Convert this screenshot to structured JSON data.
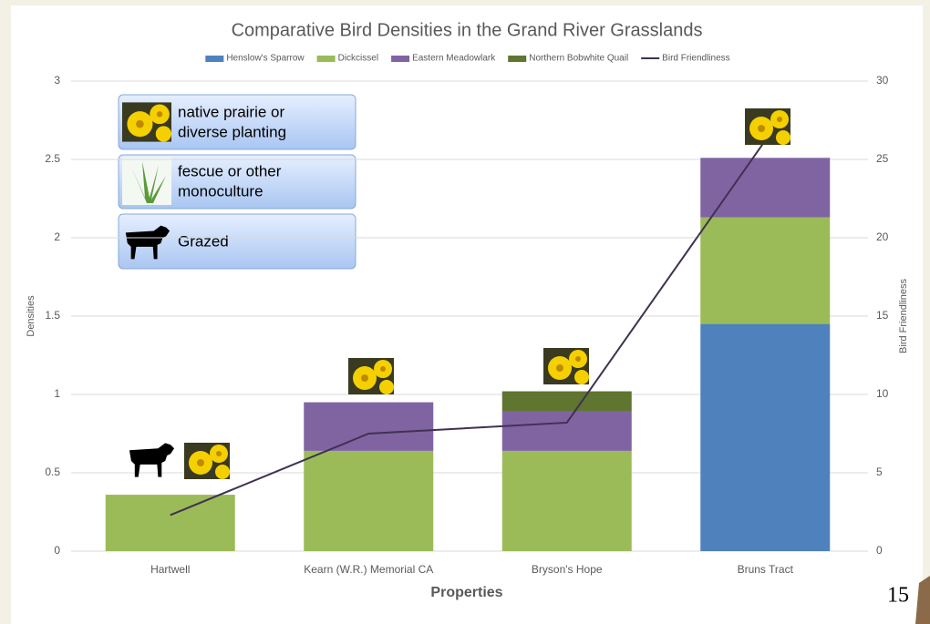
{
  "chart_data": {
    "type": "bar",
    "stacked": true,
    "title": "Comparative Bird Densities in the Grand River Grasslands",
    "categories": [
      "Hartwell",
      "Kearn (W.R.) Memorial CA",
      "Bryson's Hope",
      "Bruns Tract"
    ],
    "series": [
      {
        "name": "Henslow's Sparrow",
        "color": "#4f81bd",
        "values": [
          0,
          0,
          0,
          1.45
        ]
      },
      {
        "name": "Dickcissel",
        "color": "#9bbb59",
        "values": [
          0.36,
          0.64,
          0.64,
          0.68
        ]
      },
      {
        "name": "Eastern Meadowlark",
        "color": "#8064a2",
        "values": [
          0,
          0.31,
          0.25,
          0.38
        ]
      },
      {
        "name": "Northern Bobwhite Quail",
        "color": "#5f7530",
        "values": [
          0,
          0,
          0.13,
          0
        ]
      },
      {
        "name": "Bird Friendliness",
        "type": "line",
        "axis": "y2",
        "color": "#403152",
        "values": [
          2.3,
          7.5,
          8.2,
          26.2
        ]
      }
    ],
    "ylim": [
      0,
      3
    ],
    "yticks": [
      0,
      0.5,
      1,
      1.5,
      2,
      2.5,
      3
    ],
    "y2lim": [
      0,
      30
    ],
    "y2ticks": [
      0,
      5,
      10,
      15,
      20,
      25,
      30
    ],
    "ylabel": "Densities",
    "y2label": "Bird Friendliness",
    "xlabel": "Properties",
    "grid": true,
    "legend_position": "top"
  },
  "annotations": [
    {
      "lines": [
        "native prairie or",
        "diverse planting"
      ]
    },
    {
      "lines": [
        "fescue or other",
        "monoculture"
      ]
    },
    {
      "lines": [
        "Grazed"
      ]
    }
  ],
  "page_number": "15"
}
